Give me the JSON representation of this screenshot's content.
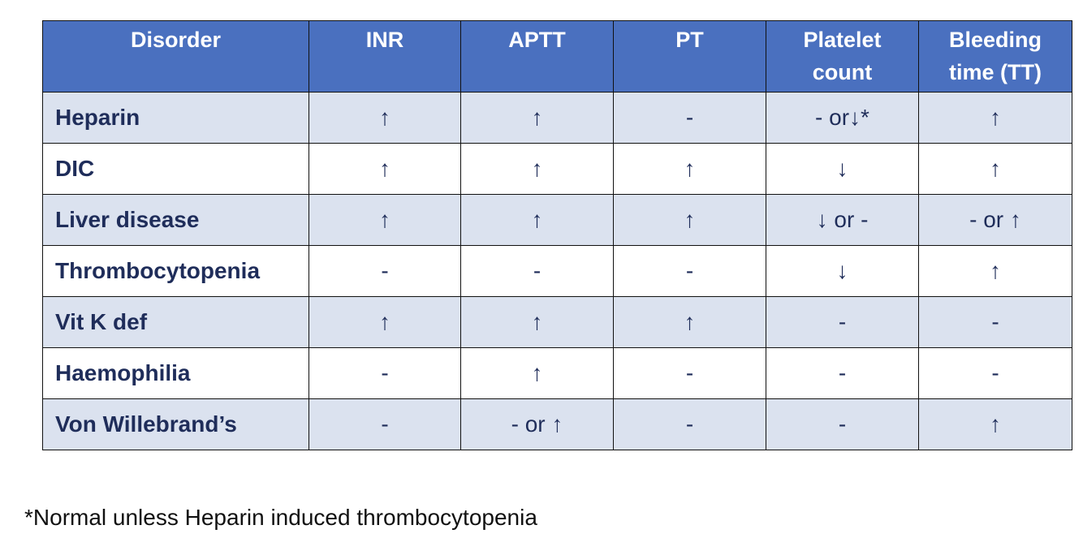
{
  "table": {
    "header": [
      "Disorder",
      "INR",
      "APTT",
      "PT",
      "Platelet count",
      "Bleeding time (TT)"
    ],
    "rows": [
      [
        "Heparin",
        "↑",
        "↑",
        "-",
        "- or↓*",
        "↑"
      ],
      [
        "DIC",
        "↑",
        "↑",
        "↑",
        "↓",
        "↑"
      ],
      [
        "Liver disease",
        "↑",
        "↑",
        "↑",
        "↓ or -",
        "- or ↑"
      ],
      [
        "Thrombocytopenia",
        "-",
        "-",
        "-",
        "↓",
        "↑"
      ],
      [
        "Vit K def",
        "↑",
        "↑",
        "↑",
        "-",
        "-"
      ],
      [
        "Haemophilia",
        "-",
        "↑",
        "-",
        "-",
        "-"
      ],
      [
        "Von Willebrand’s",
        "-",
        "- or ↑",
        "-",
        "-",
        "↑"
      ]
    ]
  },
  "footnote": "*Normal unless Heparin induced thrombocytopenia"
}
